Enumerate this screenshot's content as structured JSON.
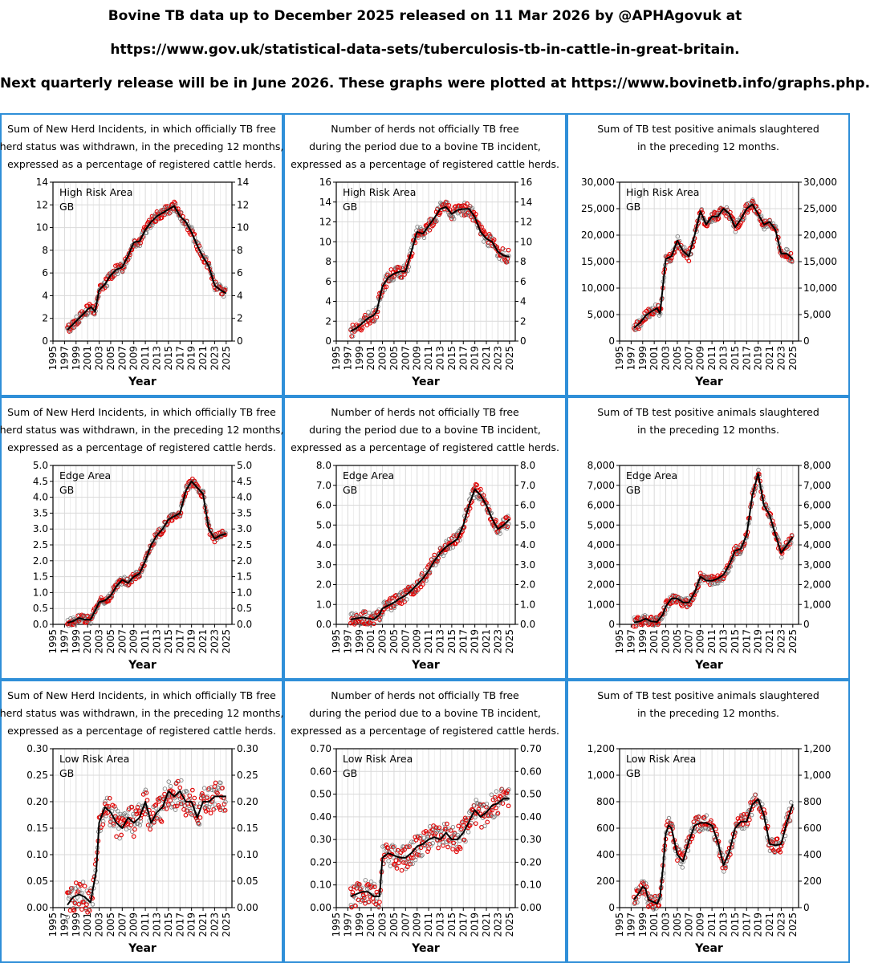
{
  "header": {
    "line1": "Bovine TB data up to December 2025 released on 11 Mar 2026 by @APHAgovuk at",
    "line2": "https://www.gov.uk/statistical-data-sets/tuberculosis-tb-in-cattle-in-great-britain.",
    "line3": "Next quarterly release will be in June 2026. These graphs were plotted at https://www.bovinetb.info/graphs.php."
  },
  "colors": {
    "panel_border": "#2f8fd8",
    "points": "#e00000",
    "line": "#000000",
    "grid": "#d9d9d9"
  },
  "chart_data": [
    {
      "type": "line",
      "title": [
        "Sum of New Herd Incidents, in which officially TB free",
        "herd status was withdrawn, in the preceding 12 months,",
        "expressed as a percentage of registered cattle herds."
      ],
      "area": "High Risk Area",
      "region": "GB",
      "xlabel": "Year",
      "xlim": [
        1995,
        2026
      ],
      "xticks": [
        1995,
        1997,
        1999,
        2001,
        2003,
        2005,
        2007,
        2009,
        2011,
        2013,
        2015,
        2017,
        2019,
        2021,
        2023,
        2025
      ],
      "ylim": [
        0,
        14
      ],
      "yticks": [
        0,
        2,
        4,
        6,
        8,
        10,
        12,
        14
      ],
      "ytick_labels": [
        "0",
        "2",
        "4",
        "6",
        "8",
        "10",
        "12",
        "14"
      ],
      "trend": {
        "x": [
          1997.5,
          1998.5,
          1999.5,
          2000.5,
          2001.0,
          2001.6,
          2002.3,
          2003.0,
          2004.0,
          2005.0,
          2006.0,
          2007.0,
          2008.0,
          2009.0,
          2010.0,
          2011.0,
          2012.0,
          2013.0,
          2014.0,
          2015.0,
          2016.0,
          2017.0,
          2018.0,
          2019.0,
          2020.0,
          2021.0,
          2022.0,
          2023.0,
          2024.0,
          2025.0
        ],
        "y": [
          1.0,
          1.5,
          2.0,
          2.5,
          2.8,
          3.0,
          2.6,
          4.5,
          5.0,
          5.8,
          6.3,
          6.5,
          7.5,
          8.7,
          8.8,
          9.8,
          10.5,
          11.0,
          11.3,
          11.6,
          11.9,
          11.0,
          10.5,
          9.6,
          8.4,
          7.4,
          6.6,
          4.9,
          4.5,
          4.2
        ]
      }
    },
    {
      "type": "line",
      "title": [
        "Number of herds not officially TB free",
        "during the period due to a bovine TB incident,",
        "expressed as a percentage of registered cattle herds."
      ],
      "area": "High Risk Area",
      "region": "GB",
      "xlabel": "Year",
      "xlim": [
        1995,
        2026
      ],
      "xticks": [
        1995,
        1997,
        1999,
        2001,
        2003,
        2005,
        2007,
        2009,
        2011,
        2013,
        2015,
        2017,
        2019,
        2021,
        2023,
        2025
      ],
      "ylim": [
        0,
        16
      ],
      "yticks": [
        0,
        2,
        4,
        6,
        8,
        10,
        12,
        14,
        16
      ],
      "ytick_labels": [
        "0",
        "2",
        "4",
        "6",
        "8",
        "10",
        "12",
        "14",
        "16"
      ],
      "trend": {
        "x": [
          1997.5,
          1998.5,
          1999.5,
          2000.5,
          2001.5,
          2002.0,
          2003.0,
          2004.0,
          2005.0,
          2006.0,
          2007.0,
          2008.0,
          2009.0,
          2010.0,
          2011.0,
          2012.0,
          2013.0,
          2014.0,
          2015.0,
          2016.0,
          2017.0,
          2018.0,
          2019.0,
          2020.0,
          2021.0,
          2022.0,
          2023.0,
          2024.0,
          2025.0
        ],
        "y": [
          1.0,
          1.3,
          1.8,
          2.3,
          2.6,
          3.0,
          5.5,
          6.4,
          6.8,
          7.0,
          7.0,
          9.0,
          11.0,
          10.8,
          11.6,
          12.4,
          13.3,
          13.5,
          12.8,
          13.2,
          13.3,
          13.3,
          12.5,
          11.0,
          10.3,
          10.0,
          9.0,
          8.6,
          8.5
        ]
      }
    },
    {
      "type": "line",
      "title": [
        "Sum of TB test positive animals slaughtered",
        "in the preceding 12 months."
      ],
      "area": "High Risk Area",
      "region": "GB",
      "xlabel": "Year",
      "xlim": [
        1995,
        2026
      ],
      "xticks": [
        1995,
        1997,
        1999,
        2001,
        2003,
        2005,
        2007,
        2009,
        2011,
        2013,
        2015,
        2017,
        2019,
        2021,
        2023,
        2025
      ],
      "ylim": [
        0,
        30000
      ],
      "yticks": [
        0,
        5000,
        10000,
        15000,
        20000,
        25000,
        30000
      ],
      "ytick_labels": [
        "0",
        "5,000",
        "10,000",
        "15,000",
        "20,000",
        "25,000",
        "30,000"
      ],
      "trend": {
        "x": [
          1997.5,
          1998.5,
          1999.5,
          2000.5,
          2001.5,
          2002.0,
          2003.0,
          2004.0,
          2005.0,
          2006.0,
          2007.0,
          2008.0,
          2009.0,
          2010.0,
          2011.0,
          2012.0,
          2013.0,
          2014.0,
          2015.0,
          2016.0,
          2017.0,
          2018.0,
          2019.0,
          2020.0,
          2021.0,
          2022.0,
          2023.0,
          2024.0,
          2025.0
        ],
        "y": [
          2500,
          3400,
          4800,
          5600,
          6200,
          5200,
          15500,
          16000,
          19000,
          17000,
          16000,
          20000,
          24500,
          22000,
          23500,
          23500,
          25000,
          24000,
          21500,
          23000,
          25000,
          25800,
          24000,
          22000,
          22500,
          21000,
          16500,
          16500,
          15500
        ]
      }
    },
    {
      "type": "line",
      "title": [
        "Sum of New Herd Incidents, in which officially TB free",
        "herd status was withdrawn, in the preceding 12 months,",
        "expressed as a percentage of registered cattle herds."
      ],
      "area": "Edge Area",
      "region": "GB",
      "xlabel": "Year",
      "xlim": [
        1995,
        2026
      ],
      "xticks": [
        1995,
        1997,
        1999,
        2001,
        2003,
        2005,
        2007,
        2009,
        2011,
        2013,
        2015,
        2017,
        2019,
        2021,
        2023,
        2025
      ],
      "ylim": [
        0,
        5
      ],
      "yticks": [
        0,
        0.5,
        1,
        1.5,
        2,
        2.5,
        3,
        3.5,
        4,
        4.5,
        5
      ],
      "ytick_labels": [
        "0.0",
        "0.5",
        "1.0",
        "1.5",
        "2.0",
        "2.5",
        "3.0",
        "3.5",
        "4.0",
        "4.5",
        "5.0"
      ],
      "trend": {
        "x": [
          1997.5,
          1998.5,
          1999.5,
          2000.5,
          2001.5,
          2002.5,
          2003.0,
          2004.0,
          2005.0,
          2006.0,
          2007.0,
          2008.0,
          2009.0,
          2010.0,
          2011.0,
          2012.0,
          2013.0,
          2014.0,
          2015.0,
          2016.0,
          2017.0,
          2018.0,
          2019.0,
          2020.0,
          2021.0,
          2022.0,
          2023.0,
          2024.0,
          2025.0
        ],
        "y": [
          0.05,
          0.1,
          0.2,
          0.15,
          0.15,
          0.5,
          0.7,
          0.75,
          0.9,
          1.2,
          1.4,
          1.3,
          1.5,
          1.6,
          2.0,
          2.5,
          2.8,
          3.0,
          3.3,
          3.4,
          3.5,
          4.2,
          4.5,
          4.3,
          4.1,
          3.0,
          2.7,
          2.8,
          2.85
        ]
      }
    },
    {
      "type": "line",
      "title": [
        "Number of herds not officially TB free",
        "during the period due to a bovine TB incident,",
        "expressed as a percentage of registered cattle herds."
      ],
      "area": "Edge Area",
      "region": "GB",
      "xlabel": "Year",
      "xlim": [
        1995,
        2026
      ],
      "xticks": [
        1995,
        1997,
        1999,
        2001,
        2003,
        2005,
        2007,
        2009,
        2011,
        2013,
        2015,
        2017,
        2019,
        2021,
        2023,
        2025
      ],
      "ylim": [
        0,
        8
      ],
      "yticks": [
        0,
        1,
        2,
        3,
        4,
        5,
        6,
        7,
        8
      ],
      "ytick_labels": [
        "0.0",
        "1.0",
        "2.0",
        "3.0",
        "4.0",
        "5.0",
        "6.0",
        "7.0",
        "8.0"
      ],
      "trend": {
        "x": [
          1997.5,
          1998.5,
          1999.5,
          2000.5,
          2001.5,
          2002.5,
          2003.0,
          2004.0,
          2005.0,
          2006.0,
          2007.0,
          2008.0,
          2009.0,
          2010.0,
          2011.0,
          2012.0,
          2013.0,
          2014.0,
          2015.0,
          2016.0,
          2017.0,
          2018.0,
          2019.0,
          2020.0,
          2021.0,
          2022.0,
          2023.0,
          2024.0,
          2025.0
        ],
        "y": [
          0.25,
          0.3,
          0.35,
          0.3,
          0.25,
          0.5,
          0.8,
          0.95,
          1.1,
          1.3,
          1.45,
          1.7,
          2.0,
          2.3,
          2.7,
          3.2,
          3.6,
          3.9,
          4.1,
          4.3,
          5.0,
          6.0,
          6.8,
          6.5,
          6.0,
          5.3,
          4.8,
          5.0,
          5.3
        ]
      }
    },
    {
      "type": "line",
      "title": [
        "Sum of TB test positive animals slaughtered",
        "in the preceding 12 months."
      ],
      "area": "Edge Area",
      "region": "GB",
      "xlabel": "Year",
      "xlim": [
        1995,
        2026
      ],
      "xticks": [
        1995,
        1997,
        1999,
        2001,
        2003,
        2005,
        2007,
        2009,
        2011,
        2013,
        2015,
        2017,
        2019,
        2021,
        2023,
        2025
      ],
      "ylim": [
        0,
        8000
      ],
      "yticks": [
        0,
        1000,
        2000,
        3000,
        4000,
        5000,
        6000,
        7000,
        8000
      ],
      "ytick_labels": [
        "0",
        "1,000",
        "2,000",
        "3,000",
        "4,000",
        "5,000",
        "6,000",
        "7,000",
        "8,000"
      ],
      "trend": {
        "x": [
          1997.5,
          1998.5,
          1999.5,
          2000.5,
          2001.5,
          2002.5,
          2003.0,
          2004.0,
          2005.0,
          2006.0,
          2007.0,
          2008.0,
          2009.0,
          2010.0,
          2011.0,
          2012.0,
          2013.0,
          2014.0,
          2015.0,
          2016.0,
          2017.0,
          2018.0,
          2019.0,
          2020.0,
          2021.0,
          2022.0,
          2023.0,
          2024.0,
          2025.0
        ],
        "y": [
          100,
          150,
          280,
          150,
          120,
          500,
          900,
          1300,
          1300,
          1100,
          1100,
          1600,
          2400,
          2200,
          2200,
          2300,
          2500,
          3000,
          3700,
          3800,
          4500,
          6500,
          7600,
          6000,
          5500,
          4500,
          3600,
          4000,
          4400
        ]
      }
    },
    {
      "type": "line",
      "title": [
        "Sum of New Herd Incidents, in which officially TB free",
        "herd status was withdrawn, in the preceding 12 months,",
        "expressed as a percentage of registered cattle herds."
      ],
      "area": "Low Risk Area",
      "region": "GB",
      "xlabel": "Year",
      "xlim": [
        1995,
        2026
      ],
      "xticks": [
        1995,
        1997,
        1999,
        2001,
        2003,
        2005,
        2007,
        2009,
        2011,
        2013,
        2015,
        2017,
        2019,
        2021,
        2023,
        2025
      ],
      "ylim": [
        0,
        0.3
      ],
      "yticks": [
        0,
        0.05,
        0.1,
        0.15,
        0.2,
        0.25,
        0.3
      ],
      "ytick_labels": [
        "0.00",
        "0.05",
        "0.10",
        "0.15",
        "0.20",
        "0.25",
        "0.30"
      ],
      "trend": {
        "x": [
          1997.5,
          1998.5,
          1999.5,
          2000.5,
          2001.5,
          2002.5,
          2003.0,
          2004.0,
          2005.0,
          2006.0,
          2007.0,
          2008.0,
          2009.0,
          2010.0,
          2011.0,
          2012.0,
          2013.0,
          2014.0,
          2015.0,
          2016.0,
          2017.0,
          2018.0,
          2019.0,
          2020.0,
          2021.0,
          2022.0,
          2023.0,
          2024.0,
          2025.0
        ],
        "y": [
          0.005,
          0.02,
          0.025,
          0.02,
          0.01,
          0.07,
          0.16,
          0.19,
          0.18,
          0.16,
          0.15,
          0.17,
          0.16,
          0.17,
          0.2,
          0.16,
          0.18,
          0.19,
          0.22,
          0.21,
          0.22,
          0.2,
          0.2,
          0.17,
          0.2,
          0.2,
          0.21,
          0.21,
          0.21
        ]
      }
    },
    {
      "type": "line",
      "title": [
        "Number of herds not officially TB free",
        "during the period due to a bovine TB incident,",
        "expressed as a percentage of registered cattle herds."
      ],
      "area": "Low Risk Area",
      "region": "GB",
      "xlabel": "Year",
      "xlim": [
        1995,
        2026
      ],
      "xticks": [
        1995,
        1997,
        1999,
        2001,
        2003,
        2005,
        2007,
        2009,
        2011,
        2013,
        2015,
        2017,
        2019,
        2021,
        2023,
        2025
      ],
      "ylim": [
        0,
        0.7
      ],
      "yticks": [
        0,
        0.1,
        0.2,
        0.3,
        0.4,
        0.5,
        0.6,
        0.7
      ],
      "ytick_labels": [
        "0.00",
        "0.10",
        "0.20",
        "0.30",
        "0.40",
        "0.50",
        "0.60",
        "0.70"
      ],
      "trend": {
        "x": [
          1997.5,
          1998.5,
          1999.5,
          2000.5,
          2001.5,
          2002.5,
          2003.0,
          2004.0,
          2005.0,
          2006.0,
          2007.0,
          2008.0,
          2009.0,
          2010.0,
          2011.0,
          2012.0,
          2013.0,
          2014.0,
          2015.0,
          2016.0,
          2017.0,
          2018.0,
          2019.0,
          2020.0,
          2021.0,
          2022.0,
          2023.0,
          2024.0,
          2025.0
        ],
        "y": [
          0.05,
          0.06,
          0.07,
          0.07,
          0.05,
          0.05,
          0.22,
          0.24,
          0.23,
          0.22,
          0.22,
          0.24,
          0.27,
          0.28,
          0.3,
          0.31,
          0.3,
          0.33,
          0.3,
          0.3,
          0.33,
          0.38,
          0.43,
          0.4,
          0.42,
          0.45,
          0.46,
          0.48,
          0.48
        ]
      }
    },
    {
      "type": "line",
      "title": [
        "Sum of TB test positive animals slaughtered",
        "in the preceding 12 months."
      ],
      "area": "Low Risk Area",
      "region": "GB",
      "xlabel": "Year",
      "xlim": [
        1995,
        2026
      ],
      "xticks": [
        1995,
        1997,
        1999,
        2001,
        2003,
        2005,
        2007,
        2009,
        2011,
        2013,
        2015,
        2017,
        2019,
        2021,
        2023,
        2025
      ],
      "ylim": [
        0,
        1200
      ],
      "yticks": [
        0,
        200,
        400,
        600,
        800,
        1000,
        1200
      ],
      "ytick_labels": [
        "0",
        "200",
        "400",
        "600",
        "800",
        "1,000",
        "1,200"
      ],
      "trend": {
        "x": [
          1997.5,
          1998.5,
          1999.0,
          1999.5,
          2000.0,
          2000.5,
          2001.0,
          2001.5,
          2002.0,
          2002.5,
          2003.0,
          2003.5,
          2004.0,
          2005.0,
          2006.0,
          2007.0,
          2008.0,
          2009.0,
          2010.0,
          2011.0,
          2012.0,
          2013.0,
          2014.0,
          2015.0,
          2016.0,
          2017.0,
          2018.0,
          2019.0,
          2020.0,
          2021.0,
          2022.0,
          2023.0,
          2024.0,
          2025.0
        ],
        "y": [
          60,
          120,
          160,
          140,
          60,
          50,
          40,
          30,
          80,
          300,
          560,
          620,
          600,
          400,
          350,
          500,
          620,
          640,
          640,
          620,
          500,
          320,
          420,
          600,
          650,
          650,
          780,
          820,
          700,
          480,
          470,
          480,
          650,
          780
        ]
      }
    }
  ]
}
